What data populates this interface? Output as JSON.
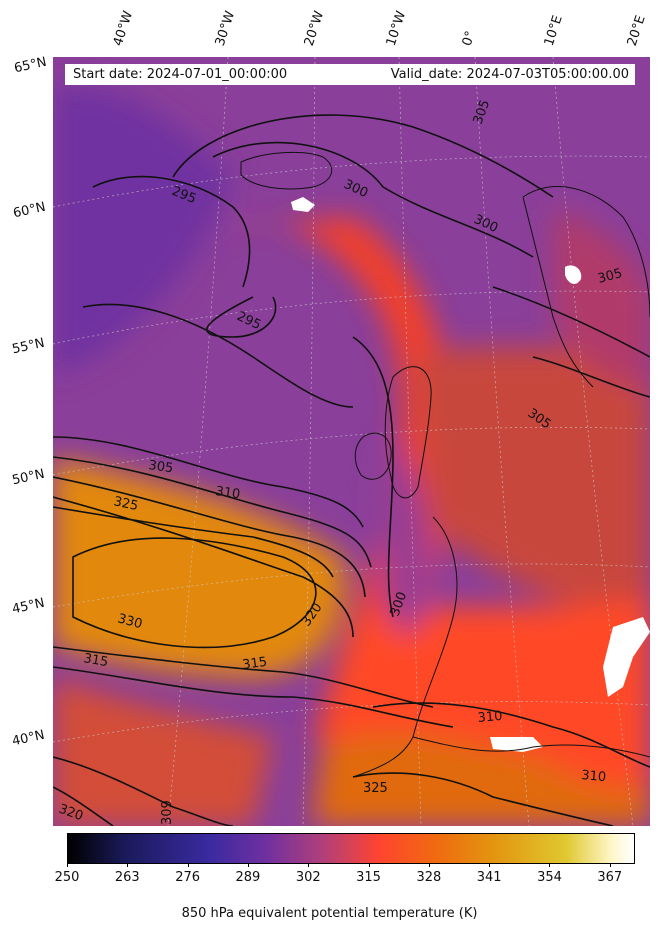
{
  "map": {
    "start_date_text": "Start date: 2024-07-01_00:00:00",
    "valid_date_text": "Valid_date: 2024-07-03T05:00:00.00",
    "longitude_labels": [
      "40°W",
      "30°W",
      "20°W",
      "10°W",
      "0°",
      "10°E",
      "20°E"
    ],
    "latitude_labels": [
      "65°N",
      "60°N",
      "55°N",
      "50°N",
      "45°N",
      "40°N"
    ],
    "contour_labels": [
      "295",
      "295",
      "300",
      "300",
      "300",
      "305",
      "305",
      "305",
      "305",
      "310",
      "310",
      "310",
      "315",
      "315",
      "320",
      "320",
      "325",
      "325",
      "330",
      "309"
    ],
    "colors": {
      "background_purple": "#8a3f9a",
      "warm_red": "#ff4a2a",
      "orange": "#e88a10",
      "land_outline": "#111111",
      "missing": "#ffffff"
    }
  },
  "colorbar": {
    "title": "850 hPa equivalent potential temperature (K)",
    "ticks": [
      "250",
      "263",
      "276",
      "289",
      "302",
      "315",
      "328",
      "341",
      "354",
      "367"
    ],
    "range": [
      250,
      372
    ],
    "colormap": "CMRmap"
  }
}
